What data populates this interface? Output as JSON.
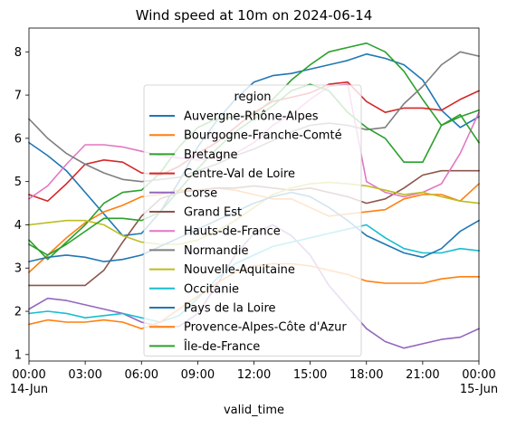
{
  "chart_data": {
    "type": "line",
    "title": "Wind speed at 10m on 2024-06-14",
    "xlabel": "valid_time",
    "ylabel": "",
    "x": [
      "00:00",
      "01:00",
      "02:00",
      "03:00",
      "04:00",
      "05:00",
      "06:00",
      "07:00",
      "08:00",
      "09:00",
      "10:00",
      "11:00",
      "12:00",
      "13:00",
      "14:00",
      "15:00",
      "16:00",
      "17:00",
      "18:00",
      "19:00",
      "20:00",
      "21:00",
      "22:00",
      "23:00",
      "00:00"
    ],
    "x_range_hours": [
      0,
      24
    ],
    "x_ticks": [
      {
        "hour": 0,
        "label": "00:00",
        "sublabel": "14-Jun"
      },
      {
        "hour": 3,
        "label": "03:00",
        "sublabel": ""
      },
      {
        "hour": 6,
        "label": "06:00",
        "sublabel": ""
      },
      {
        "hour": 9,
        "label": "09:00",
        "sublabel": ""
      },
      {
        "hour": 12,
        "label": "12:00",
        "sublabel": ""
      },
      {
        "hour": 15,
        "label": "15:00",
        "sublabel": ""
      },
      {
        "hour": 18,
        "label": "18:00",
        "sublabel": ""
      },
      {
        "hour": 21,
        "label": "21:00",
        "sublabel": ""
      },
      {
        "hour": 24,
        "label": "00:00",
        "sublabel": "15-Jun"
      }
    ],
    "ylim": [
      0.85,
      8.55
    ],
    "y_ticks": [
      1,
      2,
      3,
      4,
      5,
      6,
      7,
      8
    ],
    "grid": false,
    "legend": {
      "title": "region",
      "placement": "center"
    },
    "series": [
      {
        "name": "Auvergne-Rhône-Alpes",
        "color": "#1f77b4",
        "values": [
          5.9,
          5.6,
          5.25,
          4.75,
          4.25,
          3.75,
          3.8,
          4.3,
          5.0,
          5.8,
          6.4,
          6.9,
          7.3,
          7.45,
          7.5,
          7.6,
          7.7,
          7.8,
          7.95,
          7.85,
          7.7,
          7.35,
          6.65,
          6.25,
          6.5
        ]
      },
      {
        "name": "Bourgogne-Franche-Comté",
        "color": "#ff7f0e",
        "values": [
          2.9,
          3.3,
          3.7,
          4.05,
          4.3,
          4.45,
          4.65,
          4.7,
          4.8,
          4.8,
          4.85,
          4.8,
          4.7,
          4.6,
          4.6,
          4.4,
          4.2,
          4.25,
          4.3,
          4.35,
          4.6,
          4.7,
          4.7,
          4.55,
          4.95
        ]
      },
      {
        "name": "Bretagne",
        "color": "#2ca02c",
        "values": [
          3.65,
          3.2,
          3.6,
          4.0,
          4.5,
          4.75,
          4.8,
          5.2,
          5.8,
          6.25,
          6.45,
          6.5,
          6.55,
          6.9,
          7.35,
          7.7,
          8.0,
          8.1,
          8.2,
          8.0,
          7.55,
          6.9,
          6.3,
          6.5,
          6.65
        ]
      },
      {
        "name": "Centre-Val de Loire",
        "color": "#d62728",
        "values": [
          4.7,
          4.55,
          4.95,
          5.4,
          5.5,
          5.45,
          5.2,
          5.15,
          5.35,
          5.65,
          5.9,
          6.25,
          6.6,
          6.85,
          6.95,
          7.05,
          7.25,
          7.3,
          6.85,
          6.6,
          6.7,
          6.7,
          6.65,
          6.9,
          7.1
        ]
      },
      {
        "name": "Corse",
        "color": "#9467bd",
        "values": [
          2.05,
          2.3,
          2.25,
          2.15,
          2.05,
          1.95,
          1.75,
          1.65,
          1.65,
          1.95,
          2.6,
          3.3,
          3.8,
          4.0,
          3.75,
          3.3,
          2.6,
          2.1,
          1.6,
          1.3,
          1.15,
          1.25,
          1.35,
          1.4,
          1.6
        ]
      },
      {
        "name": "Grand Est",
        "color": "#8c564b",
        "values": [
          2.6,
          2.6,
          2.6,
          2.6,
          2.95,
          3.6,
          4.2,
          4.6,
          4.75,
          4.8,
          4.85,
          4.85,
          4.9,
          4.85,
          4.8,
          4.85,
          4.75,
          4.65,
          4.5,
          4.6,
          4.85,
          5.15,
          5.25,
          5.25,
          5.25
        ]
      },
      {
        "name": "Hauts-de-France",
        "color": "#e377c2",
        "values": [
          4.6,
          4.9,
          5.4,
          5.85,
          5.85,
          5.8,
          5.7,
          5.6,
          5.55,
          5.5,
          5.55,
          5.65,
          5.9,
          6.3,
          6.55,
          6.9,
          7.2,
          7.25,
          5.0,
          4.75,
          4.65,
          4.75,
          4.95,
          5.65,
          6.6
        ]
      },
      {
        "name": "Normandie",
        "color": "#7f7f7f",
        "values": [
          6.45,
          6.0,
          5.65,
          5.4,
          5.2,
          5.05,
          5.0,
          5.05,
          5.1,
          5.25,
          5.4,
          5.6,
          5.75,
          5.95,
          6.15,
          6.3,
          6.35,
          6.3,
          6.2,
          6.25,
          6.8,
          7.2,
          7.7,
          8.0,
          7.9
        ]
      },
      {
        "name": "Nouvelle-Aquitaine",
        "color": "#bcbd22",
        "values": [
          4.0,
          4.05,
          4.1,
          4.1,
          4.0,
          3.75,
          3.6,
          3.55,
          3.55,
          3.65,
          3.85,
          4.1,
          4.4,
          4.7,
          4.85,
          4.95,
          4.98,
          4.95,
          4.9,
          4.8,
          4.7,
          4.75,
          4.65,
          4.55,
          4.5
        ]
      },
      {
        "name": "Occitanie",
        "color": "#17becf",
        "values": [
          1.95,
          2.0,
          1.95,
          1.85,
          1.9,
          1.95,
          1.85,
          1.75,
          1.9,
          2.3,
          2.75,
          3.1,
          3.3,
          3.5,
          3.6,
          3.7,
          3.8,
          3.9,
          4.0,
          3.7,
          3.45,
          3.35,
          3.35,
          3.45,
          3.4
        ]
      },
      {
        "name": "Pays de la Loire",
        "color": "#1f77b4",
        "values": [
          3.15,
          3.25,
          3.3,
          3.25,
          3.15,
          3.2,
          3.3,
          3.5,
          3.7,
          3.9,
          4.1,
          4.3,
          4.5,
          4.65,
          4.75,
          4.65,
          4.4,
          4.1,
          3.75,
          3.55,
          3.35,
          3.25,
          3.45,
          3.85,
          4.1
        ]
      },
      {
        "name": "Provence-Alpes-Côte d'Azur",
        "color": "#ff7f0e",
        "values": [
          1.7,
          1.8,
          1.75,
          1.75,
          1.8,
          1.75,
          1.6,
          1.75,
          2.05,
          2.35,
          2.65,
          2.9,
          3.05,
          3.1,
          3.1,
          3.05,
          2.95,
          2.85,
          2.7,
          2.65,
          2.65,
          2.65,
          2.75,
          2.8,
          2.8
        ]
      },
      {
        "name": "Île-de-France",
        "color": "#2ca02c",
        "values": [
          3.55,
          3.3,
          3.55,
          3.85,
          4.15,
          4.15,
          4.1,
          4.3,
          4.8,
          5.3,
          5.75,
          6.15,
          6.45,
          6.75,
          7.1,
          7.25,
          7.1,
          6.6,
          6.25,
          6.0,
          5.45,
          5.45,
          6.3,
          6.55,
          5.9
        ]
      }
    ]
  }
}
